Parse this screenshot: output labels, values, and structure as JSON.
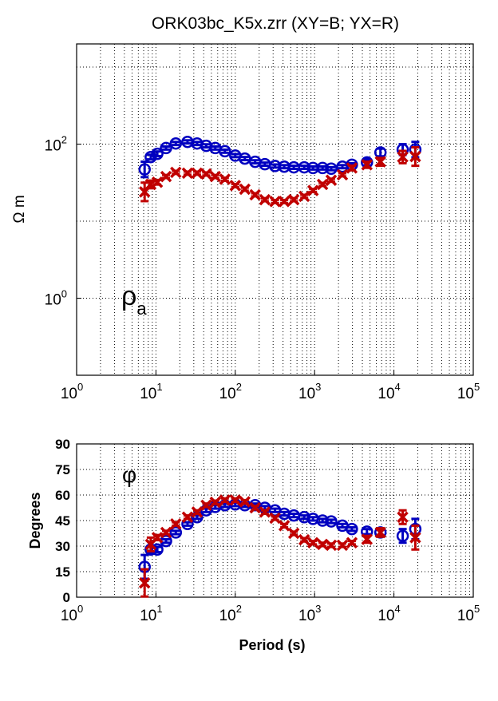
{
  "chart_data": [
    {
      "type": "scatter",
      "title": "ORK03bc_K5x.zrr (XY=B; YX=R)",
      "xlabel": "",
      "ylabel": "Ω m",
      "annotation": "ρa",
      "xscale": "log",
      "yscale": "log",
      "xlim": [
        1,
        100000
      ],
      "ylim": [
        0.1,
        2000
      ],
      "grid": true,
      "x_ticks": [
        "10^0",
        "10^1",
        "10^2",
        "10^3",
        "10^4",
        "10^5"
      ],
      "y_ticks": [
        "10^0",
        "10^2"
      ],
      "periods": [
        7.2,
        8.6,
        10.4,
        13.4,
        17.8,
        25,
        33,
        43,
        56,
        74,
        100,
        132,
        178,
        236,
        317,
        414,
        547,
        740,
        955,
        1260,
        1620,
        2240,
        2950,
        4570,
        6760,
        12900,
        18600
      ],
      "series": [
        {
          "name": "XY",
          "color": "#0000c0",
          "marker": "circle",
          "values": [
            47,
            68,
            75,
            89,
            102,
            107,
            102,
            95,
            89,
            81,
            71,
            65,
            59,
            55,
            52,
            51,
            50,
            50,
            49,
            49,
            48,
            51,
            54,
            58,
            78,
            85,
            85
          ],
          "errors": [
            0.1,
            0.03,
            0.03,
            0.02,
            0.02,
            0.02,
            0.02,
            0.02,
            0.02,
            0.02,
            0.02,
            0.02,
            0.02,
            0.02,
            0.02,
            0.02,
            0.02,
            0.02,
            0.02,
            0.02,
            0.02,
            0.02,
            0.02,
            0.04,
            0.05,
            0.07,
            0.1
          ]
        },
        {
          "name": "YX",
          "color": "#c00000",
          "marker": "x",
          "values": [
            24,
            30,
            32,
            38,
            43,
            42,
            42,
            41,
            38,
            35,
            29,
            26,
            22,
            19,
            18,
            18,
            19,
            21,
            25,
            30,
            34,
            40,
            49,
            54,
            59,
            68,
            69
          ],
          "errors": [
            0.12,
            0.05,
            0.03,
            0.02,
            0.02,
            0.02,
            0.02,
            0.02,
            0.02,
            0.02,
            0.02,
            0.02,
            0.02,
            0.02,
            0.02,
            0.02,
            0.02,
            0.02,
            0.02,
            0.02,
            0.02,
            0.02,
            0.03,
            0.04,
            0.05,
            0.08,
            0.12
          ]
        }
      ]
    },
    {
      "type": "scatter",
      "title": "",
      "xlabel": "Period (s)",
      "ylabel": "Degrees",
      "annotation": "φ",
      "xscale": "log",
      "yscale": "linear",
      "xlim": [
        1,
        100000
      ],
      "ylim": [
        0,
        90
      ],
      "grid": true,
      "x_ticks": [
        "10^0",
        "10^1",
        "10^2",
        "10^3",
        "10^4",
        "10^5"
      ],
      "y_ticks": [
        "0",
        "15",
        "30",
        "45",
        "60",
        "75",
        "90"
      ],
      "periods": [
        7.2,
        8.6,
        10.4,
        13.4,
        17.8,
        25,
        33,
        43,
        56,
        74,
        100,
        132,
        178,
        236,
        317,
        414,
        547,
        740,
        955,
        1260,
        1620,
        2240,
        2950,
        4570,
        6760,
        12900,
        18600
      ],
      "series": [
        {
          "name": "XY",
          "color": "#0000c0",
          "marker": "circle",
          "values": [
            17.8,
            28,
            28,
            33,
            38,
            43,
            47,
            51,
            53,
            54,
            54.5,
            54,
            54,
            52.5,
            51,
            49,
            48,
            47,
            46,
            45,
            44.5,
            42,
            40,
            38.5,
            38,
            36,
            40
          ],
          "errors": [
            7,
            2,
            1.5,
            1,
            1,
            1,
            1,
            1,
            1,
            1,
            1,
            1,
            1,
            1,
            1,
            1,
            1,
            1,
            1,
            1,
            1,
            1,
            1,
            1.5,
            2,
            4,
            6
          ]
        },
        {
          "name": "YX",
          "color": "#c00000",
          "marker": "x",
          "values": [
            8.4,
            31,
            35,
            38,
            43,
            47,
            50,
            54,
            55.7,
            57,
            57,
            56,
            52.5,
            50,
            46.4,
            42,
            37.5,
            33.7,
            32,
            31,
            30.5,
            30.5,
            32,
            34,
            38,
            47,
            35
          ],
          "errors": [
            8,
            4,
            1.5,
            1,
            1,
            1,
            1,
            1,
            1,
            1,
            1,
            1,
            1,
            1,
            1,
            1,
            1,
            1,
            1,
            1,
            1,
            1,
            1,
            2,
            2.5,
            4,
            7
          ]
        }
      ]
    }
  ]
}
